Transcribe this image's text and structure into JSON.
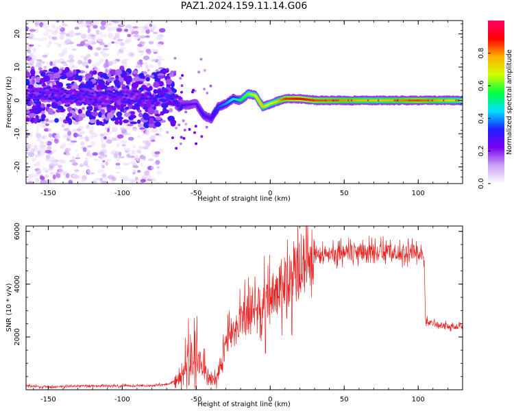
{
  "title": "PAZ1.2024.159.11.14.G06",
  "chart_data": [
    {
      "type": "heatmap",
      "xlabel": "Height of straight line (km)",
      "ylabel": "Frequency (Hz)",
      "xlim": [
        -165,
        130
      ],
      "ylim": [
        -25,
        24
      ],
      "x_ticks": [
        "-150",
        "-100",
        "-50",
        "0",
        "50",
        "100"
      ],
      "x_tick_values": [
        -150,
        -100,
        -50,
        0,
        50,
        100
      ],
      "y_ticks": [
        "-20",
        "-10",
        "0",
        "10",
        "20"
      ],
      "y_tick_values": [
        -20,
        -10,
        0,
        10,
        20
      ],
      "colorbar": {
        "label": "Normalized spectral amplitude",
        "range": [
          0,
          1
        ],
        "ticks": [
          "0.0",
          "0.2",
          "0.4",
          "0.6",
          "0.8"
        ],
        "tick_values": [
          0.0,
          0.2,
          0.4,
          0.6,
          0.8
        ],
        "colormap": [
          "#ffffff",
          "#c9a2f5",
          "#7a00f0",
          "#2020ff",
          "#00e0ff",
          "#00ff40",
          "#d0ff00",
          "#ffb000",
          "#ff0000",
          "#ff0066"
        ]
      },
      "ridge": {
        "x": [
          -165,
          -150,
          -120,
          -100,
          -80,
          -70,
          -60,
          -50,
          -45,
          -40,
          -35,
          -30,
          -25,
          -20,
          -15,
          -10,
          -5,
          0,
          10,
          20,
          30,
          50,
          75,
          100,
          130
        ],
        "freq": [
          1.0,
          2.0,
          0.5,
          1.5,
          0.0,
          2.0,
          -1.5,
          -1.0,
          -4.5,
          -5.5,
          -2.0,
          -1.0,
          0.5,
          0.0,
          2.0,
          1.5,
          -2.0,
          -1.0,
          0.5,
          0.5,
          0.0,
          0.0,
          0.0,
          0.0,
          0.0
        ],
        "amplitude": [
          0.3,
          0.3,
          0.3,
          0.3,
          0.3,
          0.35,
          0.3,
          0.25,
          0.3,
          0.3,
          0.35,
          0.4,
          0.45,
          0.55,
          0.6,
          0.7,
          0.75,
          0.65,
          0.85,
          0.9,
          0.85,
          0.8,
          0.75,
          0.85,
          0.7
        ]
      }
    },
    {
      "type": "line",
      "xlabel": "Height of straight line (km)",
      "ylabel": "SNR (10 * v/v)",
      "xlim": [
        -165,
        130
      ],
      "ylim": [
        0,
        6200
      ],
      "x_ticks": [
        "-150",
        "-100",
        "-50",
        "0",
        "50",
        "100"
      ],
      "x_tick_values": [
        -150,
        -100,
        -50,
        0,
        50,
        100
      ],
      "y_ticks": [
        "2000",
        "4000",
        "6000"
      ],
      "y_tick_values": [
        2000,
        4000,
        6000
      ],
      "color": "#e82020",
      "series": [
        {
          "x": [
            -165,
            -150,
            -125,
            -100,
            -80,
            -70,
            -62,
            -57,
            -53,
            -50,
            -47,
            -43,
            -38,
            -35,
            -32,
            -28,
            -24,
            -20,
            -15,
            -10,
            -5,
            0,
            5,
            10,
            15,
            20,
            25,
            30,
            40,
            50,
            60,
            70,
            80,
            90,
            95,
            100,
            104,
            105,
            110,
            120,
            130
          ],
          "y": [
            150,
            100,
            150,
            150,
            150,
            200,
            400,
            1000,
            1600,
            1400,
            900,
            700,
            300,
            600,
            1400,
            1900,
            2200,
            2500,
            2800,
            3100,
            3200,
            3400,
            3700,
            4100,
            4400,
            4700,
            4900,
            5000,
            5100,
            5200,
            5200,
            5200,
            5200,
            5200,
            5300,
            5200,
            5000,
            2600,
            2500,
            2400,
            2400
          ]
        }
      ]
    }
  ]
}
